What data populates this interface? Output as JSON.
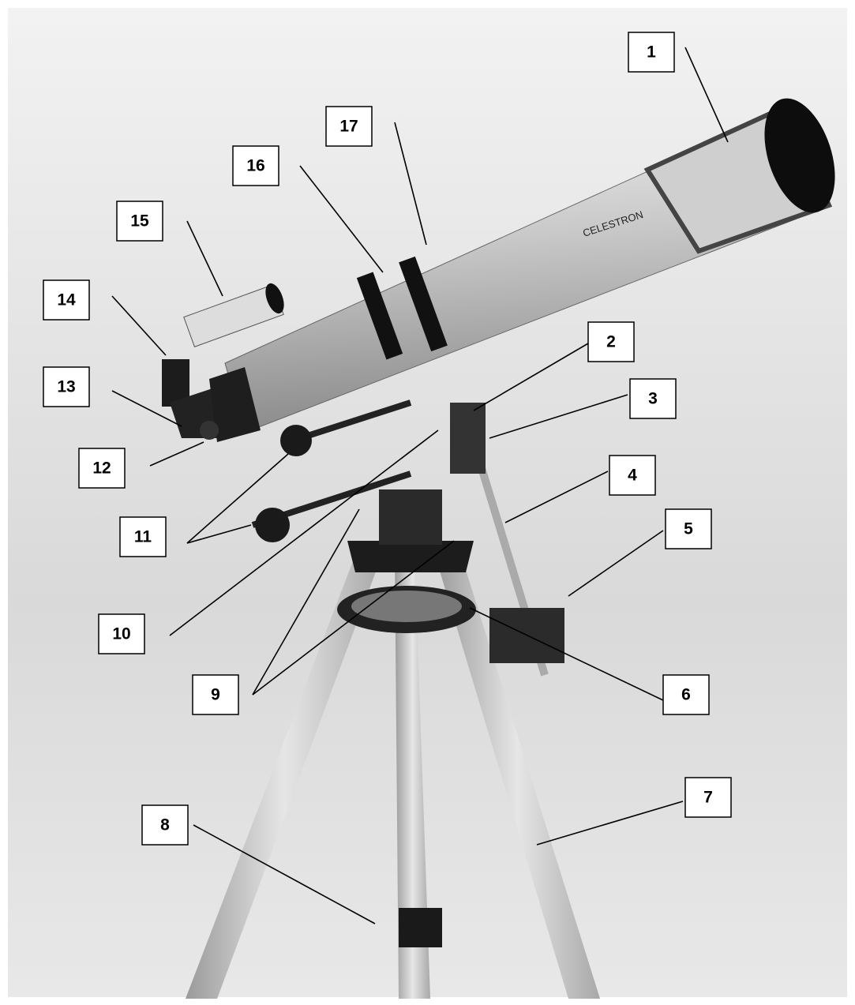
{
  "callouts": [
    "1",
    "2",
    "3",
    "4",
    "5",
    "6",
    "7",
    "8",
    "9",
    "10",
    "11",
    "12",
    "13",
    "14",
    "15",
    "16",
    "17"
  ],
  "brand": "CELESTRON"
}
